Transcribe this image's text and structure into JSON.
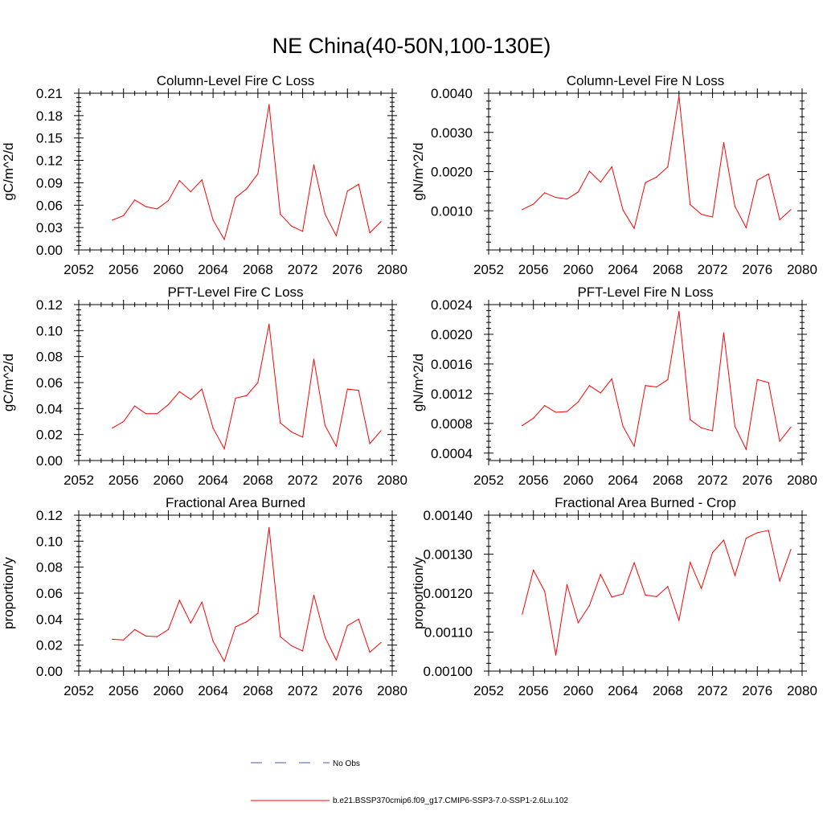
{
  "title": "NE China(40-50N,100-130E)",
  "colors": {
    "model": "#ff0000",
    "obs": "#4a5aa8",
    "axis": "#000000"
  },
  "legend": {
    "obs_label": "No Obs",
    "model_label": "b.e21.BSSP370cmip6.f09_g17.CMIP6-SSP3-7.0-SSP1-2.6Lu.102"
  },
  "chart_data": [
    {
      "type": "line",
      "title": "Column-Level Fire C Loss",
      "ylabel": "gC/m^2/d",
      "xlim": [
        2052,
        2080
      ],
      "ylim": [
        0,
        0.21
      ],
      "xticks": [
        2052,
        2056,
        2060,
        2064,
        2068,
        2072,
        2076,
        2080
      ],
      "yticks": [
        "0.00",
        "0.03",
        "0.06",
        "0.09",
        "0.12",
        "0.15",
        "0.18",
        "0.21"
      ],
      "x": [
        2055,
        2056,
        2057,
        2058,
        2059,
        2060,
        2061,
        2062,
        2063,
        2064,
        2065,
        2066,
        2067,
        2068,
        2069,
        2070,
        2071,
        2072,
        2073,
        2074,
        2075,
        2076,
        2077,
        2078,
        2079
      ],
      "series": [
        {
          "values": [
            0.04,
            0.046,
            0.067,
            0.058,
            0.055,
            0.066,
            0.093,
            0.078,
            0.094,
            0.04,
            0.014,
            0.07,
            0.082,
            0.102,
            0.195,
            0.048,
            0.032,
            0.025,
            0.114,
            0.048,
            0.019,
            0.079,
            0.088,
            0.023,
            0.038
          ]
        }
      ]
    },
    {
      "type": "line",
      "title": "Column-Level Fire N Loss",
      "ylabel": "gN/m^2/d",
      "xlim": [
        2052,
        2080
      ],
      "ylim": [
        0.0,
        0.004
      ],
      "xticks": [
        2052,
        2056,
        2060,
        2064,
        2068,
        2072,
        2076,
        2080
      ],
      "yticks": [
        "0.0010",
        "0.0020",
        "0.0030",
        "0.0040"
      ],
      "x": [
        2055,
        2056,
        2057,
        2058,
        2059,
        2060,
        2061,
        2062,
        2063,
        2064,
        2065,
        2066,
        2067,
        2068,
        2069,
        2070,
        2071,
        2072,
        2073,
        2074,
        2075,
        2076,
        2077,
        2078,
        2079
      ],
      "series": [
        {
          "values": [
            0.00103,
            0.00117,
            0.00146,
            0.00134,
            0.0013,
            0.00148,
            0.00201,
            0.00173,
            0.00212,
            0.00102,
            0.00055,
            0.00172,
            0.00186,
            0.00212,
            0.00393,
            0.00116,
            0.00091,
            0.00084,
            0.00274,
            0.00111,
            0.00057,
            0.00178,
            0.00194,
            0.00077,
            0.00103
          ]
        }
      ]
    },
    {
      "type": "line",
      "title": "PFT-Level Fire C Loss",
      "ylabel": "gC/m^2/d",
      "xlim": [
        2052,
        2080
      ],
      "ylim": [
        0,
        0.12
      ],
      "xticks": [
        2052,
        2056,
        2060,
        2064,
        2068,
        2072,
        2076,
        2080
      ],
      "yticks": [
        "0.00",
        "0.02",
        "0.04",
        "0.06",
        "0.08",
        "0.10",
        "0.12"
      ],
      "x": [
        2055,
        2056,
        2057,
        2058,
        2059,
        2060,
        2061,
        2062,
        2063,
        2064,
        2065,
        2066,
        2067,
        2068,
        2069,
        2070,
        2071,
        2072,
        2073,
        2074,
        2075,
        2076,
        2077,
        2078,
        2079
      ],
      "series": [
        {
          "values": [
            0.025,
            0.03,
            0.042,
            0.036,
            0.036,
            0.043,
            0.053,
            0.047,
            0.055,
            0.025,
            0.009,
            0.048,
            0.05,
            0.06,
            0.105,
            0.029,
            0.022,
            0.018,
            0.078,
            0.027,
            0.011,
            0.055,
            0.054,
            0.013,
            0.023
          ]
        }
      ]
    },
    {
      "type": "line",
      "title": "PFT-Level Fire N Loss",
      "ylabel": "gN/m^2/d",
      "xlim": [
        2052,
        2080
      ],
      "ylim": [
        0.0003,
        0.0024
      ],
      "xticks": [
        2052,
        2056,
        2060,
        2064,
        2068,
        2072,
        2076,
        2080
      ],
      "yticks": [
        "0.0004",
        "0.0008",
        "0.0012",
        "0.0016",
        "0.0020",
        "0.0024"
      ],
      "x": [
        2055,
        2056,
        2057,
        2058,
        2059,
        2060,
        2061,
        2062,
        2063,
        2064,
        2065,
        2066,
        2067,
        2068,
        2069,
        2070,
        2071,
        2072,
        2073,
        2074,
        2075,
        2076,
        2077,
        2078,
        2079
      ],
      "series": [
        {
          "values": [
            0.00077,
            0.00087,
            0.00104,
            0.00095,
            0.00096,
            0.00109,
            0.00131,
            0.00121,
            0.0014,
            0.00076,
            0.00049,
            0.00131,
            0.00129,
            0.00139,
            0.00231,
            0.00085,
            0.00074,
            0.0007,
            0.00202,
            0.00076,
            0.00045,
            0.00139,
            0.00135,
            0.00056,
            0.00075
          ]
        }
      ]
    },
    {
      "type": "line",
      "title": "Fractional Area Burned",
      "ylabel": "proportion/y",
      "xlim": [
        2052,
        2080
      ],
      "ylim": [
        0,
        0.12
      ],
      "xticks": [
        2052,
        2056,
        2060,
        2064,
        2068,
        2072,
        2076,
        2080
      ],
      "yticks": [
        "0.00",
        "0.02",
        "0.04",
        "0.06",
        "0.08",
        "0.10",
        "0.12"
      ],
      "x": [
        2055,
        2056,
        2057,
        2058,
        2059,
        2060,
        2061,
        2062,
        2063,
        2064,
        2065,
        2066,
        2067,
        2068,
        2069,
        2070,
        2071,
        2072,
        2073,
        2074,
        2075,
        2076,
        2077,
        2078,
        2079
      ],
      "series": [
        {
          "values": [
            0.0245,
            0.024,
            0.032,
            0.027,
            0.0265,
            0.032,
            0.0545,
            0.037,
            0.053,
            0.023,
            0.0075,
            0.034,
            0.038,
            0.0445,
            0.1105,
            0.0265,
            0.0195,
            0.0155,
            0.0585,
            0.026,
            0.0085,
            0.035,
            0.04,
            0.0145,
            0.022
          ]
        }
      ]
    },
    {
      "type": "line",
      "title": "Fractional Area Burned - Crop",
      "ylabel": "proportion/y",
      "xlim": [
        2052,
        2080
      ],
      "ylim": [
        0.001,
        0.0014
      ],
      "xticks": [
        2052,
        2056,
        2060,
        2064,
        2068,
        2072,
        2076,
        2080
      ],
      "yticks": [
        "0.00100",
        "0.00110",
        "0.00120",
        "0.00130",
        "0.00140"
      ],
      "x": [
        2055,
        2056,
        2057,
        2058,
        2059,
        2060,
        2061,
        2062,
        2063,
        2064,
        2065,
        2066,
        2067,
        2068,
        2069,
        2070,
        2071,
        2072,
        2073,
        2074,
        2075,
        2076,
        2077,
        2078,
        2079
      ],
      "series": [
        {
          "values": [
            0.001146,
            0.001259,
            0.001205,
            0.001041,
            0.001222,
            0.001124,
            0.001168,
            0.001248,
            0.00119,
            0.001198,
            0.001278,
            0.001195,
            0.001191,
            0.001217,
            0.00113,
            0.001279,
            0.001212,
            0.001304,
            0.001336,
            0.001245,
            0.001341,
            0.001355,
            0.001361,
            0.001231,
            0.001312
          ]
        }
      ]
    }
  ]
}
